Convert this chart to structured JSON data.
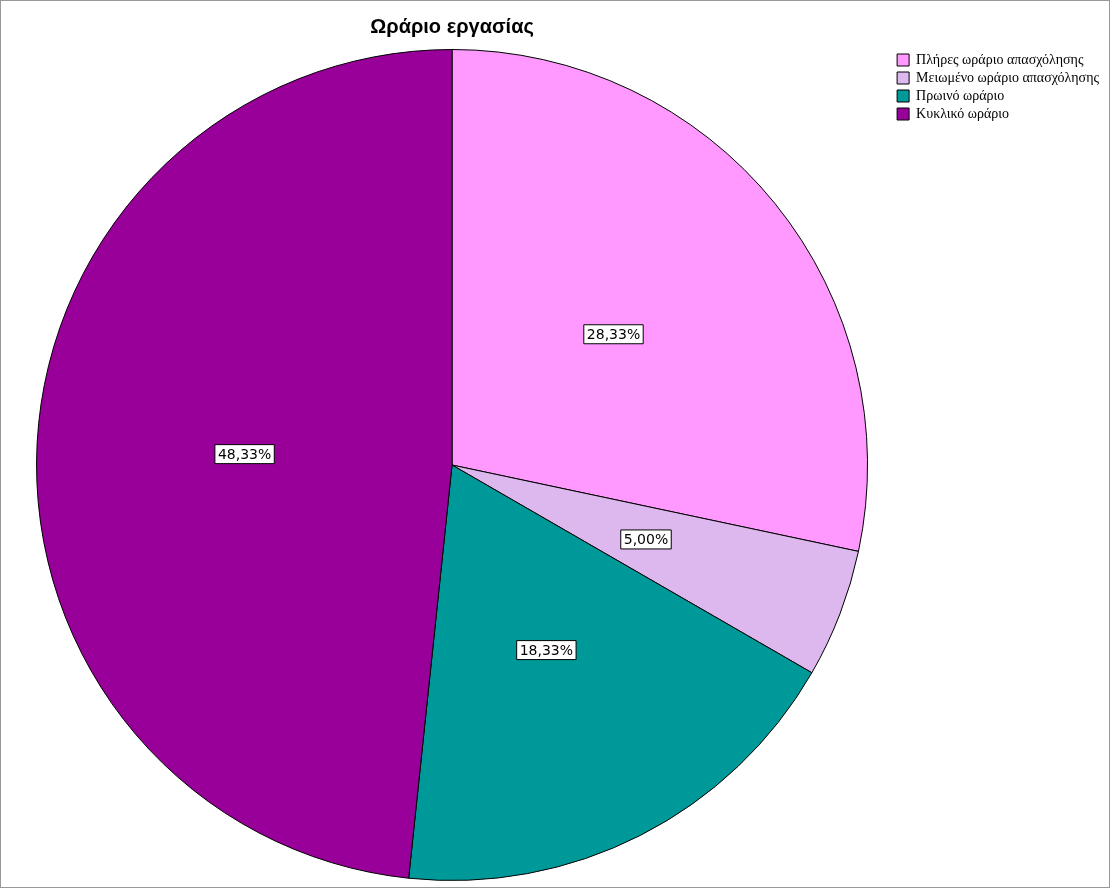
{
  "chart_data": {
    "type": "pie",
    "title": "Ωράριο εργασίας",
    "categories": [
      "Πλήρες ωράριο απασχόλησης",
      "Μειωμένο ωράριο απασχόλησης",
      "Πρωινό ωράριο",
      "Κυκλικό ωράριο"
    ],
    "values": [
      28.33,
      5.0,
      18.33,
      48.33
    ],
    "colors": [
      "#ff99ff",
      "#ddb8ee",
      "#009999",
      "#990099"
    ],
    "value_labels": [
      "28,33%",
      "5,00%",
      "18,33%",
      "48,33%"
    ],
    "legend": "top right"
  }
}
